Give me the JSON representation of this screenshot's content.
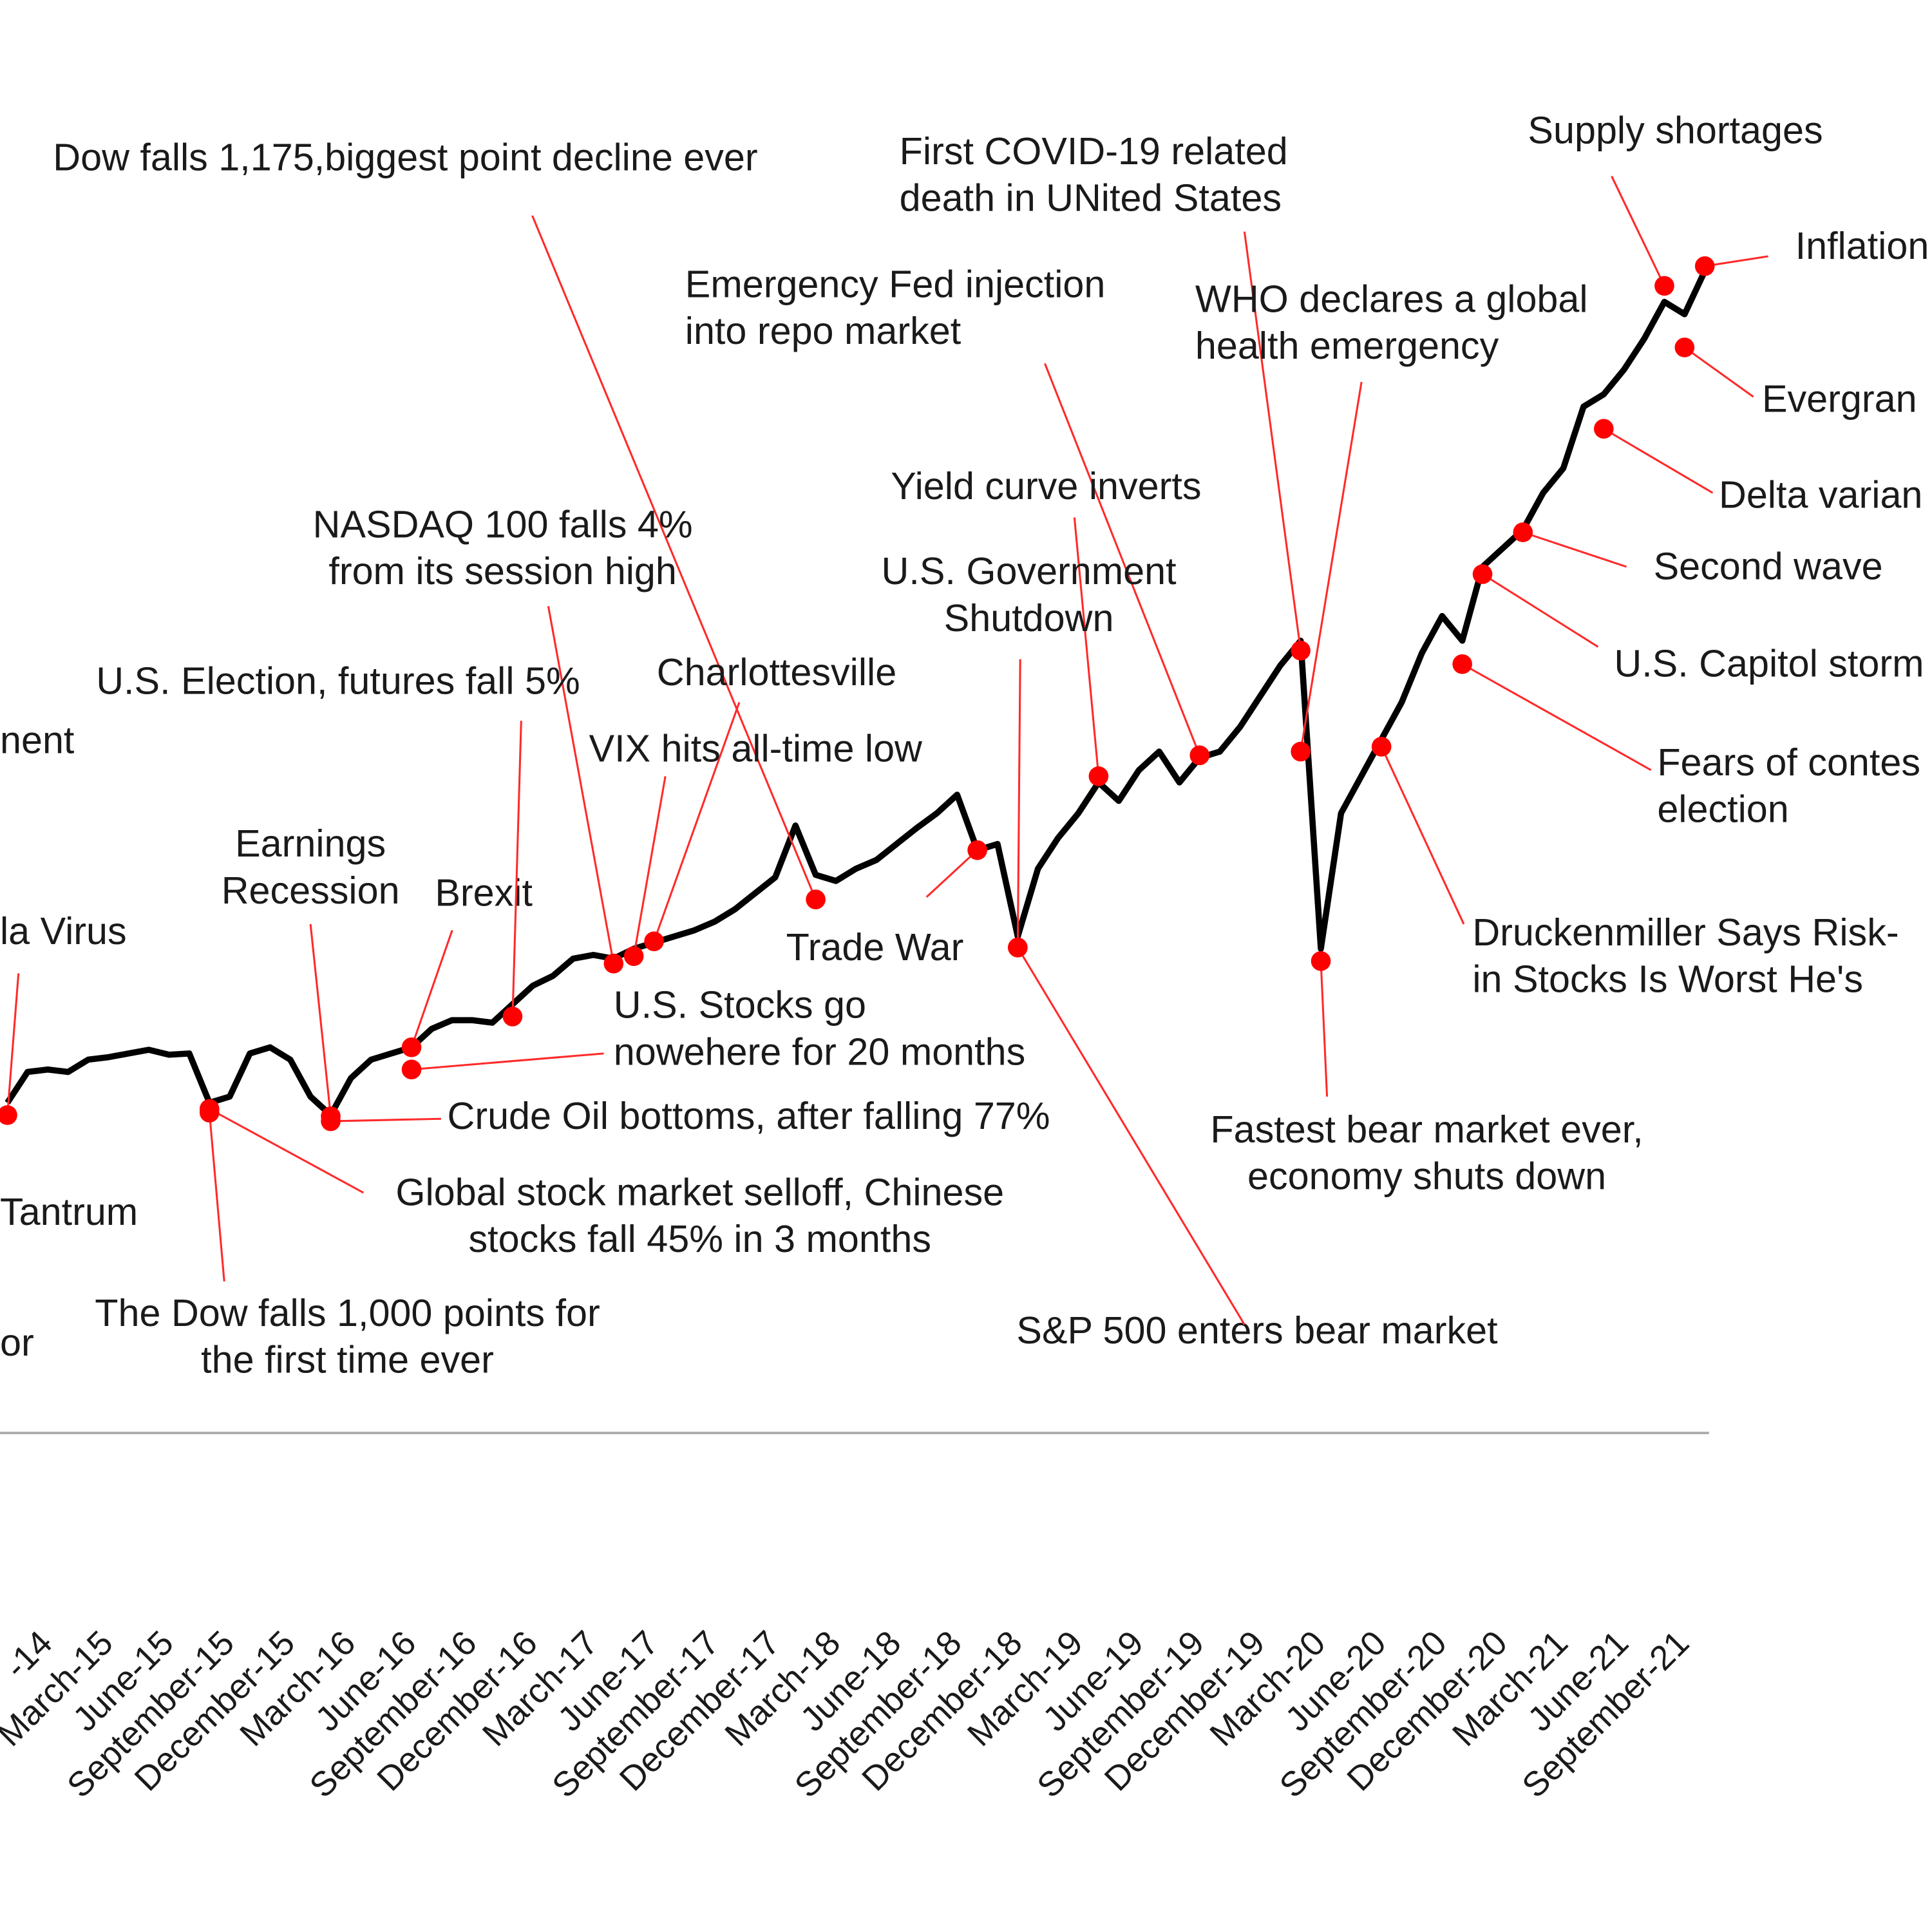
{
  "chart_data": {
    "type": "line",
    "series": [
      {
        "color": "#000000",
        "x": [
          "2014-10",
          "2014-11",
          "2014-12",
          "2015-01",
          "2015-02",
          "2015-03",
          "2015-04",
          "2015-05",
          "2015-06",
          "2015-07",
          "2015-08",
          "2015-09",
          "2015-10",
          "2015-11",
          "2015-12",
          "2016-01",
          "2016-02",
          "2016-03",
          "2016-04",
          "2016-05",
          "2016-06",
          "2016-07",
          "2016-08",
          "2016-09",
          "2016-10",
          "2016-11",
          "2016-12",
          "2017-01",
          "2017-02",
          "2017-03",
          "2017-04",
          "2017-05",
          "2017-06",
          "2017-07",
          "2017-08",
          "2017-09",
          "2017-10",
          "2017-11",
          "2017-12",
          "2018-01",
          "2018-02",
          "2018-03",
          "2018-04",
          "2018-05",
          "2018-06",
          "2018-07",
          "2018-08",
          "2018-09",
          "2018-10",
          "2018-11",
          "2018-12",
          "2019-01",
          "2019-02",
          "2019-03",
          "2019-04",
          "2019-05",
          "2019-06",
          "2019-07",
          "2019-08",
          "2019-09",
          "2019-10",
          "2019-11",
          "2019-12",
          "2020-01",
          "2020-02",
          "2020-03",
          "2020-04",
          "2020-05",
          "2020-06",
          "2020-07",
          "2020-08",
          "2020-09",
          "2020-10",
          "2020-11",
          "2020-12",
          "2021-01",
          "2021-02",
          "2021-03",
          "2021-04",
          "2021-05",
          "2021-06",
          "2021-07",
          "2021-08",
          "2021-09",
          "2021-10"
        ],
        "values": [
          268,
          293,
          295,
          293,
          303,
          305,
          308,
          311,
          307,
          308,
          268,
          273,
          308,
          313,
          303,
          273,
          258,
          288,
          303,
          308,
          313,
          328,
          335,
          335,
          333,
          348,
          363,
          371,
          385,
          388,
          385,
          393,
          398,
          403,
          408,
          415,
          425,
          438,
          451,
          493,
          453,
          448,
          458,
          465,
          478,
          491,
          503,
          518,
          473,
          478,
          403,
          458,
          483,
          503,
          528,
          513,
          538,
          553,
          528,
          548,
          553,
          573,
          598,
          623,
          643,
          393,
          503,
          533,
          563,
          593,
          633,
          663,
          643,
          703,
          718,
          733,
          763,
          783,
          833,
          843,
          863,
          888,
          918,
          908,
          943
        ]
      }
    ],
    "ylim": [
      0,
      1100
    ],
    "dot_color": "#ff0000",
    "xticks": [
      {
        "value": "2014-12",
        "label": "-14"
      },
      {
        "value": "2015-03",
        "label": "March-15"
      },
      {
        "value": "2015-06",
        "label": "June-15"
      },
      {
        "value": "2015-09",
        "label": "September-15"
      },
      {
        "value": "2015-12",
        "label": "December-15"
      },
      {
        "value": "2016-03",
        "label": "March-16"
      },
      {
        "value": "2016-06",
        "label": "June-16"
      },
      {
        "value": "2016-09",
        "label": "September-16"
      },
      {
        "value": "2016-12",
        "label": "December-16"
      },
      {
        "value": "2017-03",
        "label": "March-17"
      },
      {
        "value": "2017-06",
        "label": "June-17"
      },
      {
        "value": "2017-09",
        "label": "September-17"
      },
      {
        "value": "2017-12",
        "label": "December-17"
      },
      {
        "value": "2018-03",
        "label": "March-18"
      },
      {
        "value": "2018-06",
        "label": "June-18"
      },
      {
        "value": "2018-09",
        "label": "September-18"
      },
      {
        "value": "2018-12",
        "label": "December-18"
      },
      {
        "value": "2019-03",
        "label": "March-19"
      },
      {
        "value": "2019-06",
        "label": "June-19"
      },
      {
        "value": "2019-09",
        "label": "September-19"
      },
      {
        "value": "2019-12",
        "label": "December-19"
      },
      {
        "value": "2020-03",
        "label": "March-20"
      },
      {
        "value": "2020-06",
        "label": "June-20"
      },
      {
        "value": "2020-09",
        "label": "September-20"
      },
      {
        "value": "2020-12",
        "label": "December-20"
      },
      {
        "value": "2021-03",
        "label": "March-21"
      },
      {
        "value": "2021-06",
        "label": "June-21"
      },
      {
        "value": "2021-09",
        "label": "September-21"
      }
    ],
    "annotations": [
      {
        "text": [
          "Dow falls 1,175,biggest point decline ever"
        ],
        "x": "2018-02",
        "y": 433
      },
      {
        "text": [
          "First COVID-19 related",
          "death in UNited States"
        ],
        "x": "2020-02",
        "y": 635
      },
      {
        "text": [
          "Supply shortages"
        ],
        "x": "2021-08",
        "y": 931
      },
      {
        "text": [
          "Inflation"
        ],
        "x": "2021-10",
        "y": 947
      },
      {
        "text": [
          "Evergran"
        ],
        "x": "2021-09",
        "y": 881
      },
      {
        "text": [
          "Delta varian"
        ],
        "x": "2021-05",
        "y": 815
      },
      {
        "text": [
          "Second wave"
        ],
        "x": "2021-01",
        "y": 731
      },
      {
        "text": [
          "U.S. Capitol storm"
        ],
        "x": "2020-11",
        "y": 697
      },
      {
        "text": [
          "Fears of contes",
          "election"
        ],
        "x": "2020-10",
        "y": 624
      },
      {
        "text": [
          "Druckenmiller Says Risk-",
          "in Stocks Is Worst He's"
        ],
        "x": "2020-06",
        "y": 557
      },
      {
        "text": [
          "Fastest bear market ever,",
          "economy shuts down"
        ],
        "x": "2020-03",
        "y": 383
      },
      {
        "text": [
          "WHO declares a global",
          "health emergency"
        ],
        "x": "2020-02",
        "y": 553
      },
      {
        "text": [
          "Emergency Fed injection",
          "into repo market"
        ],
        "x": "2019-09",
        "y": 550
      },
      {
        "text": [
          "Yield curve inverts"
        ],
        "x": "2019-04",
        "y": 533
      },
      {
        "text": [
          "U.S. Government",
          "Shutdown"
        ],
        "x": "2018-12",
        "y": 394
      },
      {
        "text": [
          "Trade War"
        ],
        "x": "2018-10",
        "y": 473
      },
      {
        "text": [
          "S&P 500 enters bear market"
        ],
        "x": "2018-12",
        "y": 394
      },
      {
        "text": [
          "Charlottesville"
        ],
        "x": "2017-06",
        "y": 399
      },
      {
        "text": [
          "VIX hits all-time low"
        ],
        "x": "2017-05",
        "y": 387
      },
      {
        "text": [
          "NASDAQ 100 falls 4%",
          "from its  session high"
        ],
        "x": "2017-04",
        "y": 381
      },
      {
        "text": [
          "U.S. Stocks go",
          "nowehere for 20 months"
        ],
        "x": "2016-06",
        "y": 295
      },
      {
        "text": [
          "Brexit"
        ],
        "x": "2016-06",
        "y": 313
      },
      {
        "text": [
          "U.S. Election, futures fall 5%"
        ],
        "x": "2016-11",
        "y": 338
      },
      {
        "text": [
          "Earnings",
          "Recession"
        ],
        "x": "2016-02",
        "y": 257
      },
      {
        "text": [
          "Crude Oil bottoms, after falling 77%"
        ],
        "x": "2016-02",
        "y": 253
      },
      {
        "text": [
          "Global stock market selloff, Chinese",
          "stocks fall 45% in 3 months"
        ],
        "x": "2015-08",
        "y": 263
      },
      {
        "text": [
          "The Dow falls 1,000 points for",
          "the first time ever"
        ],
        "x": "2015-08",
        "y": 260
      },
      {
        "text": [
          "la Virus"
        ],
        "x": "2014-10",
        "y": 258
      },
      {
        "text": [
          "nent"
        ]
      },
      {
        "text": [
          "Tantrum"
        ]
      },
      {
        "text": [
          "or"
        ]
      }
    ]
  }
}
